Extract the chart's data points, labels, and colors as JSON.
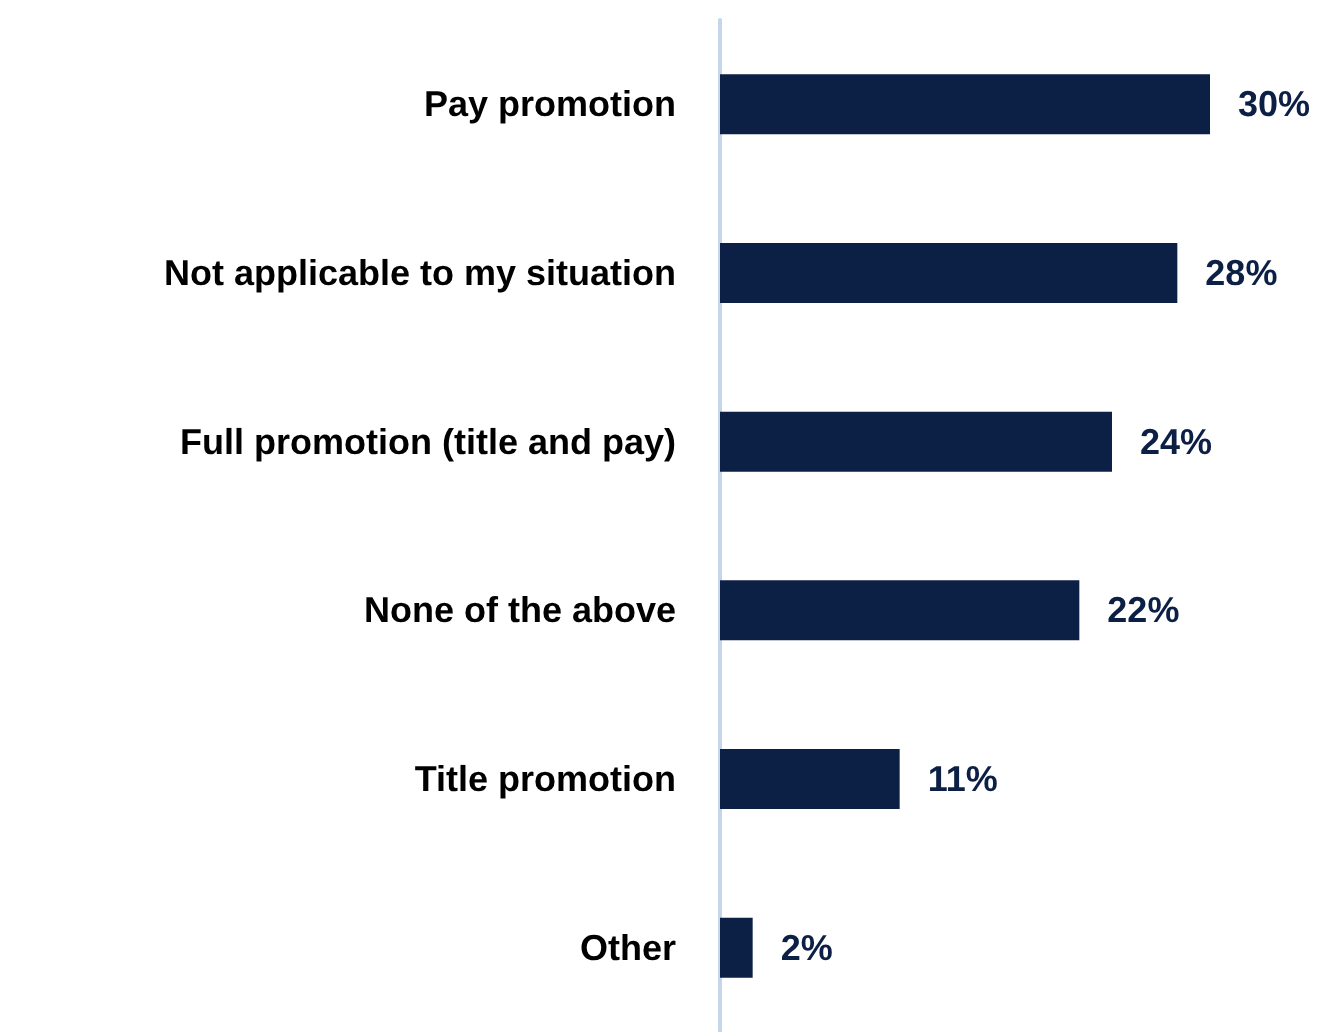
{
  "chart_data": {
    "type": "bar",
    "orientation": "horizontal",
    "categories": [
      "Pay promotion",
      "Not applicable to my situation",
      "Full promotion (title and pay)",
      "None of the above",
      "Title promotion",
      "Other"
    ],
    "values": [
      30,
      28,
      24,
      22,
      11,
      2
    ],
    "value_labels": [
      "30%",
      "28%",
      "24%",
      "22%",
      "11%",
      "2%"
    ],
    "color": "#0c1f45"
  }
}
